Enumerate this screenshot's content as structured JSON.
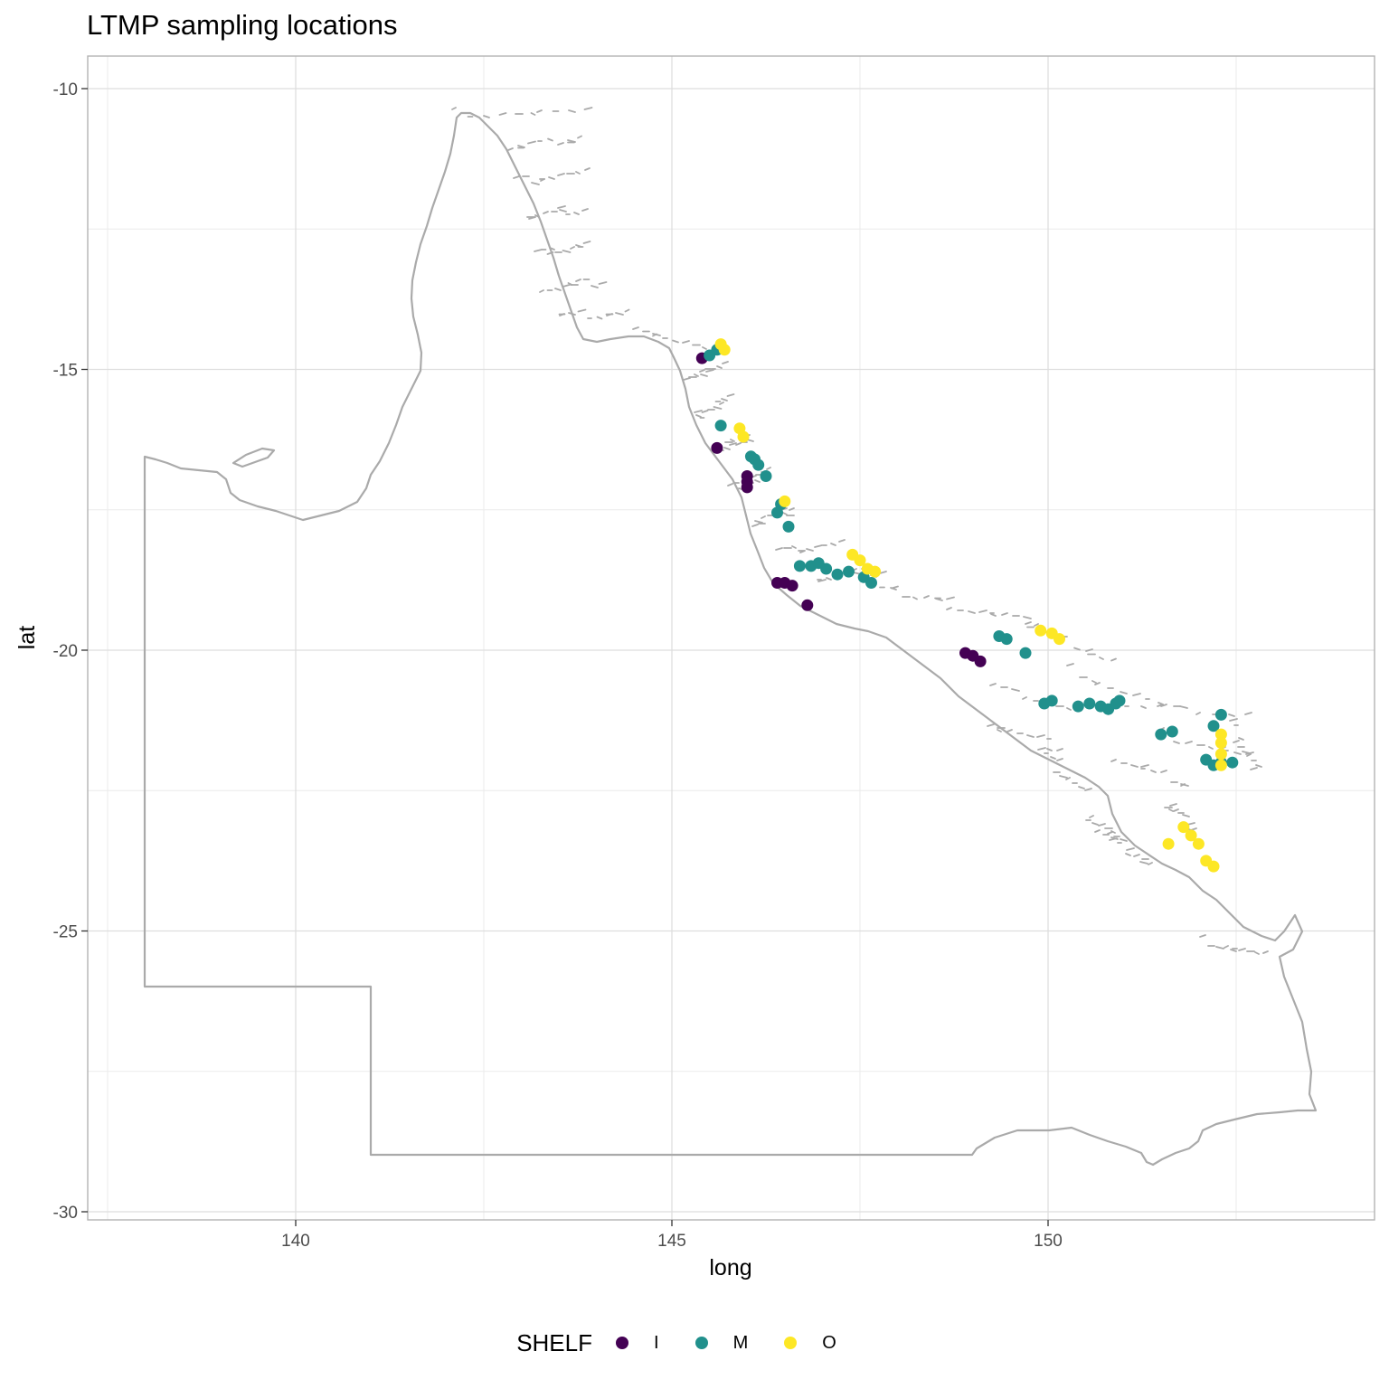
{
  "title": "LTMP sampling locations",
  "chart_data": {
    "type": "map-scatter",
    "title": "LTMP sampling locations",
    "xlabel": "long",
    "ylabel": "lat",
    "xlim": [
      137.3,
      154.4
    ],
    "ylim": [
      -30.2,
      -9.4
    ],
    "x_ticks": [
      140,
      145,
      150
    ],
    "y_ticks": [
      -10,
      -15,
      -20,
      -25,
      -30
    ],
    "grid": true,
    "legend_position": "bottom",
    "legend_title": "SHELF",
    "colors": {
      "I": "#440154",
      "M": "#21908C",
      "O": "#FDE725",
      "outline": "#aaaaaa"
    },
    "series": [
      {
        "name": "I",
        "points": [
          [
            145.4,
            -14.8
          ],
          [
            145.6,
            -16.4
          ],
          [
            146.0,
            -16.9
          ],
          [
            146.0,
            -17.0
          ],
          [
            146.0,
            -17.1
          ],
          [
            146.4,
            -18.8
          ],
          [
            146.5,
            -18.8
          ],
          [
            146.6,
            -18.85
          ],
          [
            146.8,
            -19.2
          ],
          [
            148.9,
            -20.05
          ],
          [
            149.0,
            -20.1
          ],
          [
            149.1,
            -20.2
          ]
        ]
      },
      {
        "name": "M",
        "points": [
          [
            145.5,
            -14.75
          ],
          [
            145.6,
            -14.65
          ],
          [
            145.65,
            -16.0
          ],
          [
            146.05,
            -16.55
          ],
          [
            146.1,
            -16.6
          ],
          [
            146.15,
            -16.7
          ],
          [
            146.25,
            -16.9
          ],
          [
            146.4,
            -17.55
          ],
          [
            146.45,
            -17.4
          ],
          [
            146.55,
            -17.8
          ],
          [
            146.7,
            -18.5
          ],
          [
            146.85,
            -18.5
          ],
          [
            146.95,
            -18.45
          ],
          [
            147.05,
            -18.55
          ],
          [
            147.2,
            -18.65
          ],
          [
            147.35,
            -18.6
          ],
          [
            147.55,
            -18.7
          ],
          [
            147.65,
            -18.8
          ],
          [
            149.35,
            -19.75
          ],
          [
            149.45,
            -19.8
          ],
          [
            149.7,
            -20.05
          ],
          [
            149.95,
            -20.95
          ],
          [
            150.05,
            -20.9
          ],
          [
            150.4,
            -21.0
          ],
          [
            150.55,
            -20.95
          ],
          [
            150.7,
            -21.0
          ],
          [
            150.8,
            -21.05
          ],
          [
            150.9,
            -20.95
          ],
          [
            150.95,
            -20.9
          ],
          [
            151.5,
            -21.5
          ],
          [
            151.65,
            -21.45
          ],
          [
            152.2,
            -21.35
          ],
          [
            152.3,
            -21.15
          ],
          [
            152.1,
            -21.95
          ],
          [
            152.2,
            -22.05
          ],
          [
            152.3,
            -22.0
          ],
          [
            152.45,
            -22.0
          ]
        ]
      },
      {
        "name": "O",
        "points": [
          [
            145.65,
            -14.55
          ],
          [
            145.7,
            -14.65
          ],
          [
            145.9,
            -16.05
          ],
          [
            145.95,
            -16.2
          ],
          [
            146.5,
            -17.35
          ],
          [
            147.4,
            -18.3
          ],
          [
            147.5,
            -18.4
          ],
          [
            147.6,
            -18.55
          ],
          [
            147.7,
            -18.6
          ],
          [
            149.9,
            -19.65
          ],
          [
            150.05,
            -19.7
          ],
          [
            150.15,
            -19.8
          ],
          [
            152.3,
            -21.5
          ],
          [
            152.3,
            -21.65
          ],
          [
            152.3,
            -21.85
          ],
          [
            152.3,
            -22.05
          ],
          [
            151.8,
            -23.15
          ],
          [
            151.9,
            -23.3
          ],
          [
            152.0,
            -23.45
          ],
          [
            151.6,
            -23.45
          ],
          [
            152.1,
            -23.75
          ],
          [
            152.2,
            -23.85
          ]
        ]
      }
    ]
  }
}
